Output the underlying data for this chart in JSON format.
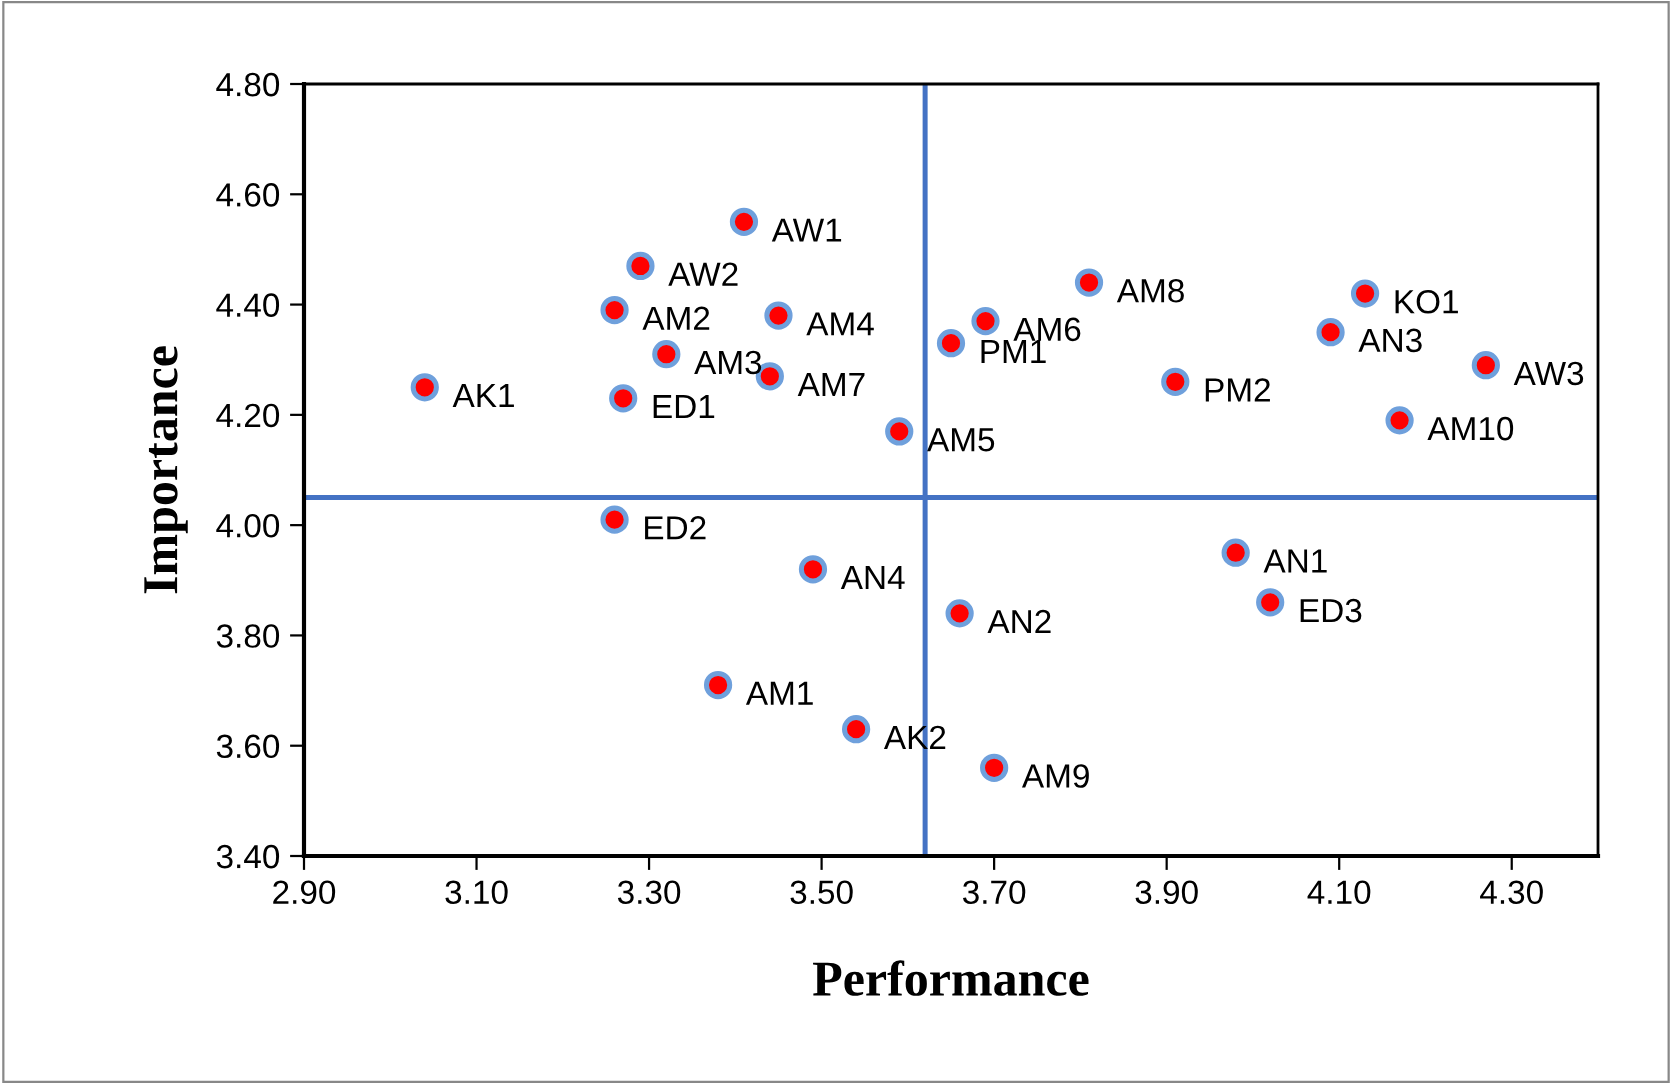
{
  "chart_data": {
    "type": "scatter",
    "xlabel": "Performance",
    "ylabel": "Importance",
    "xlim": [
      2.9,
      4.4
    ],
    "xticks": [
      {
        "value": 2.9,
        "label": "2.90"
      },
      {
        "value": 3.1,
        "label": "3.10"
      },
      {
        "value": 3.3,
        "label": "3.30"
      },
      {
        "value": 3.5,
        "label": "3.50"
      },
      {
        "value": 3.7,
        "label": "3.70"
      },
      {
        "value": 3.9,
        "label": "3.90"
      },
      {
        "value": 4.1,
        "label": "4.10"
      },
      {
        "value": 4.3,
        "label": "4.30"
      }
    ],
    "ylim": [
      3.4,
      4.8
    ],
    "yticks": [
      {
        "value": 3.4,
        "label": "3.40"
      },
      {
        "value": 3.6,
        "label": "3.60"
      },
      {
        "value": 3.8,
        "label": "3.80"
      },
      {
        "value": 4.0,
        "label": "4.00"
      },
      {
        "value": 4.2,
        "label": "4.20"
      },
      {
        "value": 4.4,
        "label": "4.40"
      },
      {
        "value": 4.6,
        "label": "4.60"
      },
      {
        "value": 4.8,
        "label": "4.80"
      }
    ],
    "grid": false,
    "legend": false,
    "marker": "circle",
    "series": [
      {
        "color": "#ff0000",
        "x": [
          3.04,
          3.41,
          3.29,
          3.26,
          3.45,
          3.32,
          3.44,
          3.27,
          3.59,
          3.26,
          3.65,
          3.69,
          3.81,
          3.91,
          4.09,
          4.13,
          4.27,
          4.17,
          3.49,
          3.66,
          3.98,
          4.02,
          3.38,
          3.54,
          3.7
        ],
        "values": [
          4.25,
          4.55,
          4.47,
          4.39,
          4.38,
          4.31,
          4.27,
          4.23,
          4.17,
          4.01,
          4.33,
          4.37,
          4.44,
          4.26,
          4.35,
          4.42,
          4.29,
          4.19,
          3.92,
          3.84,
          3.95,
          3.86,
          3.71,
          3.63,
          3.56
        ]
      }
    ],
    "ref_lines": [
      {
        "axis": "x",
        "value": 3.62,
        "label": null,
        "color": "#4472c4"
      },
      {
        "axis": "y",
        "value": 4.05,
        "label": null,
        "color": "#4472c4"
      }
    ],
    "annotations": [
      {
        "text": "AK1",
        "x": 3.04,
        "y": 4.25
      },
      {
        "text": "AW1",
        "x": 3.41,
        "y": 4.55
      },
      {
        "text": "AW2",
        "x": 3.29,
        "y": 4.47
      },
      {
        "text": "AM2",
        "x": 3.26,
        "y": 4.39
      },
      {
        "text": "AM4",
        "x": 3.45,
        "y": 4.38
      },
      {
        "text": "AM3",
        "x": 3.32,
        "y": 4.31
      },
      {
        "text": "AM7",
        "x": 3.44,
        "y": 4.27
      },
      {
        "text": "ED1",
        "x": 3.27,
        "y": 4.23
      },
      {
        "text": "AM5",
        "x": 3.59,
        "y": 4.17
      },
      {
        "text": "ED2",
        "x": 3.26,
        "y": 4.01
      },
      {
        "text": "PM1",
        "x": 3.65,
        "y": 4.33
      },
      {
        "text": "AM6",
        "x": 3.69,
        "y": 4.37
      },
      {
        "text": "AM8",
        "x": 3.81,
        "y": 4.44
      },
      {
        "text": "PM2",
        "x": 3.91,
        "y": 4.26
      },
      {
        "text": "AN3",
        "x": 4.09,
        "y": 4.35
      },
      {
        "text": "KO1",
        "x": 4.13,
        "y": 4.42
      },
      {
        "text": "AW3",
        "x": 4.27,
        "y": 4.29
      },
      {
        "text": "AM10",
        "x": 4.17,
        "y": 4.19
      },
      {
        "text": "AN4",
        "x": 3.49,
        "y": 3.92
      },
      {
        "text": "AN2",
        "x": 3.66,
        "y": 3.84
      },
      {
        "text": "AN1",
        "x": 3.98,
        "y": 3.95
      },
      {
        "text": "ED3",
        "x": 4.02,
        "y": 3.86
      },
      {
        "text": "AM1",
        "x": 3.38,
        "y": 3.71
      },
      {
        "text": "AK2",
        "x": 3.54,
        "y": 3.63
      },
      {
        "text": "AM9",
        "x": 3.7,
        "y": 3.56
      }
    ]
  }
}
